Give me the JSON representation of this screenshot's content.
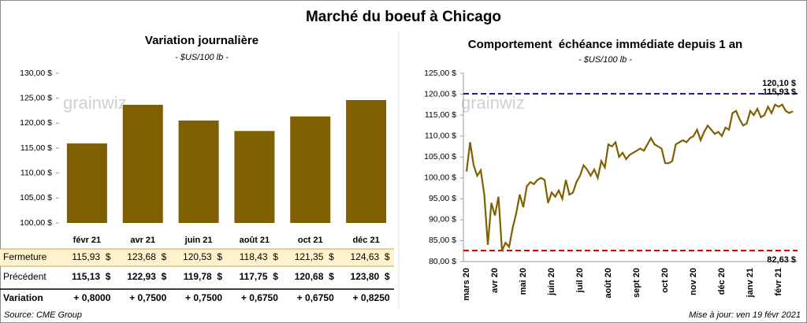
{
  "header": {
    "title": "Marché du boeuf à Chicago",
    "watermark": "grainwiz"
  },
  "chart_data": [
    {
      "type": "bar",
      "title": "Variation journalière",
      "subtitle": "- $US/100 lb -",
      "categories": [
        "févr 21",
        "avr 21",
        "juin 21",
        "août 21",
        "oct 21",
        "déc 21"
      ],
      "values": [
        115.93,
        123.68,
        120.53,
        118.43,
        121.35,
        124.63
      ],
      "color": "#7f6000",
      "ylim": [
        100,
        130
      ],
      "yticks": [
        {
          "value": 100,
          "label": "100,00 $"
        },
        {
          "value": 105,
          "label": "105,00 $"
        },
        {
          "value": 110,
          "label": "110,00 $"
        },
        {
          "value": 115,
          "label": "115,00 $"
        },
        {
          "value": 120,
          "label": "120,00 $"
        },
        {
          "value": 125,
          "label": "125,00 $"
        },
        {
          "value": 130,
          "label": "130,00 $"
        }
      ]
    },
    {
      "type": "line",
      "title": "Comportement  échéance immédiate depuis 1 an",
      "subtitle": "- $US/100 lb -",
      "categories": [
        "mars 20",
        null,
        null,
        null,
        null,
        null,
        null,
        null,
        "avr 20",
        null,
        null,
        null,
        null,
        null,
        null,
        null,
        "mai 20",
        null,
        null,
        null,
        null,
        null,
        null,
        null,
        "juin 20",
        null,
        null,
        null,
        null,
        null,
        null,
        null,
        "juil 20",
        null,
        null,
        null,
        null,
        null,
        null,
        null,
        "août 20",
        null,
        null,
        null,
        null,
        null,
        null,
        null,
        "sept 20",
        null,
        null,
        null,
        null,
        null,
        null,
        null,
        "oct 20",
        null,
        null,
        null,
        null,
        null,
        null,
        null,
        "nov 20",
        null,
        null,
        null,
        null,
        null,
        null,
        null,
        "déc 20",
        null,
        null,
        null,
        null,
        null,
        null,
        null,
        "janv 21",
        null,
        null,
        null,
        null,
        null,
        null,
        null,
        "févr 21",
        null,
        null,
        null,
        null
      ],
      "values": [
        101.5,
        108.5,
        103.0,
        100.5,
        101.8,
        96.0,
        84.0,
        94.0,
        91.0,
        95.5,
        82.63,
        84.5,
        83.5,
        88.0,
        91.5,
        96.0,
        93.0,
        98.0,
        99.0,
        98.5,
        99.5,
        100.0,
        99.5,
        94.0,
        96.5,
        95.5,
        97.0,
        95.0,
        99.5,
        96.0,
        96.5,
        99.0,
        100.5,
        103.0,
        102.0,
        100.5,
        102.0,
        100.0,
        104.0,
        102.5,
        108.0,
        107.5,
        108.5,
        105.0,
        106.0,
        104.5,
        105.5,
        106.0,
        106.5,
        107.0,
        106.5,
        108.0,
        109.5,
        108.0,
        107.5,
        107.0,
        103.5,
        103.5,
        104.0,
        108.0,
        108.5,
        109.0,
        108.5,
        109.5,
        110.0,
        111.5,
        109.0,
        111.0,
        112.5,
        111.5,
        110.5,
        111.0,
        110.0,
        112.0,
        111.5,
        115.5,
        116.0,
        114.0,
        112.5,
        113.0,
        116.0,
        115.0,
        116.5,
        114.5,
        115.0,
        117.0,
        115.5,
        117.5,
        117.0,
        117.5,
        116.0,
        115.5,
        115.93
      ],
      "color": "#7f6000",
      "end_label": "115,93 $",
      "reference_lines": [
        {
          "value": 120.1,
          "label": "120,10 $",
          "color": "#1a1aa6"
        },
        {
          "value": 82.63,
          "label": "82,63 $",
          "color": "#e00000"
        }
      ],
      "ylim": [
        80,
        125
      ],
      "yticks": [
        {
          "value": 80,
          "label": "80,00 $"
        },
        {
          "value": 85,
          "label": "85,00 $"
        },
        {
          "value": 90,
          "label": "90,00 $"
        },
        {
          "value": 95,
          "label": "95,00 $"
        },
        {
          "value": 100,
          "label": "100,00 $"
        },
        {
          "value": 105,
          "label": "105,00 $"
        },
        {
          "value": 110,
          "label": "110,00 $"
        },
        {
          "value": 115,
          "label": "115,00 $"
        },
        {
          "value": 120,
          "label": "120,00 $"
        },
        {
          "value": 125,
          "label": "125,00 $"
        }
      ]
    }
  ],
  "table": {
    "rows": [
      {
        "label": "Fermeture",
        "cells": [
          "115,93  $",
          "123,68  $",
          "120,53  $",
          "118,43  $",
          "121,35  $",
          "124,63  $"
        ]
      },
      {
        "label": "Précédent",
        "cells": [
          "115,13  $",
          "122,93  $",
          "119,78  $",
          "117,75  $",
          "120,68  $",
          "123,80  $"
        ]
      },
      {
        "label": "Variation",
        "cells": [
          "+ 0,8000",
          "+ 0,7500",
          "+ 0,7500",
          "+ 0,6750",
          "+ 0,6750",
          "+ 0,8250"
        ]
      }
    ]
  },
  "footer": {
    "source": "Source: CME Group",
    "updated": "Mise à jour: ven 19 févr 2021"
  }
}
